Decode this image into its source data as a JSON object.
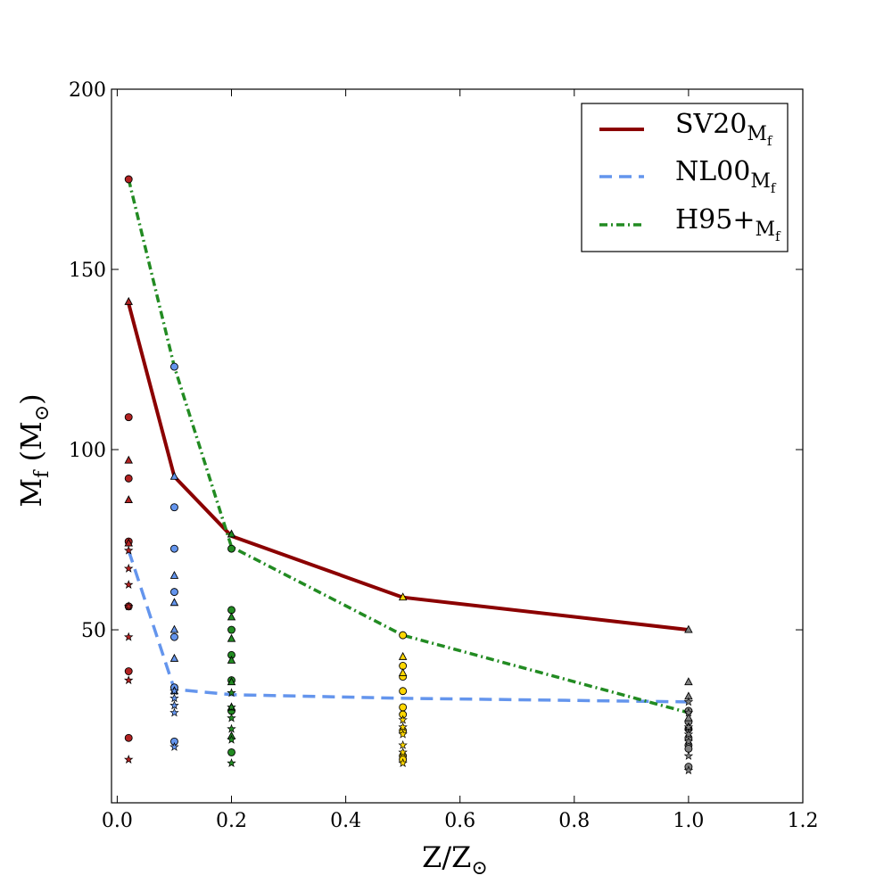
{
  "chart_data": {
    "type": "line",
    "xlabel": "Z/Z",
    "xlabel_sub": "⊙",
    "ylabel": "M",
    "ylabel_sub": "f",
    "ylabel_unit": "(M",
    "ylabel_unit_sub": "⊙",
    "ylabel_unit_close": ")",
    "xlim": [
      -0.01,
      1.2
    ],
    "ylim": [
      2,
      200
    ],
    "xticks": [
      0.0,
      0.2,
      0.4,
      0.6,
      0.8,
      1.0,
      1.2
    ],
    "xtick_labels": [
      "0.0",
      "0.2",
      "0.4",
      "0.6",
      "0.8",
      "1.0",
      "1.2"
    ],
    "yticks": [
      50,
      100,
      150,
      200
    ],
    "ytick_labels": [
      "50",
      "100",
      "150",
      "200"
    ],
    "grid": false,
    "legend_position": "top-right",
    "series": [
      {
        "name": "SV20",
        "subscript": "Mf",
        "color": "#8b0000",
        "style": "solid",
        "x": [
          0.02,
          0.1,
          0.2,
          0.5,
          1.0
        ],
        "y": [
          140.5,
          92.5,
          76,
          59,
          50
        ]
      },
      {
        "name": "NL00",
        "subscript": "Mf",
        "color": "#6495ed",
        "style": "dashed",
        "x": [
          0.02,
          0.1,
          0.2,
          0.5,
          1.0
        ],
        "y": [
          72,
          33.5,
          32,
          31,
          30
        ]
      },
      {
        "name": "H95+",
        "subscript": "Mf",
        "color": "#228b22",
        "style": "dashdot",
        "x": [
          0.02,
          0.1,
          0.2,
          0.5,
          1.0
        ],
        "y": [
          175,
          123,
          73,
          48.5,
          27
        ]
      }
    ],
    "scatter_groups": [
      {
        "x": 0.02,
        "color": "#b22222",
        "circles": [
          175,
          109,
          92,
          74.5,
          56.5,
          38.5,
          20
        ],
        "triangles": [
          141,
          97,
          86,
          74
        ],
        "stars": [
          72,
          67,
          62.5,
          56.5,
          48,
          36,
          14
        ]
      },
      {
        "x": 0.1,
        "color": "#6495ed",
        "circles": [
          123,
          84,
          72.5,
          60.5,
          48,
          34,
          19
        ],
        "triangles": [
          92.5,
          65,
          57.5,
          50,
          42,
          33
        ],
        "stars": [
          33,
          31,
          29,
          27,
          17.5
        ]
      },
      {
        "x": 0.2,
        "color": "#228b22",
        "circles": [
          72.5,
          55.5,
          50,
          43,
          36,
          27.5,
          16
        ],
        "triangles": [
          76.5,
          53.5,
          47.5,
          41.5,
          35.5,
          28.5,
          20.5
        ],
        "stars": [
          32.5,
          28.5,
          25.5,
          22.5,
          19.5,
          13
        ]
      },
      {
        "x": 0.5,
        "color": "#ffd700",
        "circles": [
          48.5,
          40,
          37,
          33,
          28.5,
          26.5,
          22,
          15,
          14
        ],
        "triangles": [
          59,
          42.5,
          38
        ],
        "stars": [
          25,
          23,
          21,
          18,
          16,
          13
        ]
      },
      {
        "x": 1.0,
        "color": "#808080",
        "circles": [
          27.5,
          24.5,
          22.5,
          20,
          18,
          17,
          12
        ],
        "triangles": [
          50,
          35.5,
          31.5,
          25.5,
          23
        ],
        "stars": [
          30,
          27,
          23,
          21,
          19,
          15,
          11
        ]
      }
    ]
  }
}
